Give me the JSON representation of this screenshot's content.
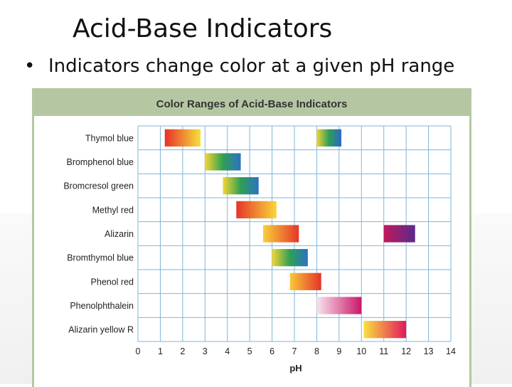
{
  "slide": {
    "title": "Acid-Base Indicators",
    "bullet": "Indicators change color at a given pH range"
  },
  "chart_data": {
    "type": "bar",
    "title": "Color Ranges of Acid-Base Indicators",
    "xlabel": "pH",
    "ylabel": "",
    "xlim": [
      0,
      14
    ],
    "xticks": [
      "0",
      "1",
      "2",
      "3",
      "4",
      "5",
      "6",
      "7",
      "8",
      "9",
      "10",
      "11",
      "12",
      "13",
      "14"
    ],
    "grid": true,
    "categories": [
      "Thymol blue",
      "Bromphenol blue",
      "Bromcresol green",
      "Methyl red",
      "Alizarin",
      "Bromthymol blue",
      "Phenol red",
      "Phenolphthalein",
      "Alizarin yellow R"
    ],
    "ranges": [
      [
        {
          "start": 1.2,
          "end": 2.8,
          "from": "#e8302a",
          "to": "#f6e03a"
        },
        {
          "start": 8.0,
          "end": 9.1,
          "from": "#f3d23a",
          "to": "#2a68c8",
          "mid": "#2e9e55"
        }
      ],
      [
        {
          "start": 3.0,
          "end": 4.6,
          "from": "#f5d535",
          "to": "#2c70c8",
          "mid": "#2ea052"
        }
      ],
      [
        {
          "start": 3.8,
          "end": 5.4,
          "from": "#f5d535",
          "to": "#2a72c4",
          "mid": "#2ea052"
        }
      ],
      [
        {
          "start": 4.4,
          "end": 6.2,
          "from": "#e5342a",
          "to": "#f8d83a"
        }
      ],
      [
        {
          "start": 5.6,
          "end": 7.2,
          "from": "#f8d03a",
          "to": "#e5352a"
        },
        {
          "start": 11.0,
          "end": 12.4,
          "from": "#c2185b",
          "to": "#5a2a8c"
        }
      ],
      [
        {
          "start": 6.0,
          "end": 7.6,
          "from": "#f5d535",
          "to": "#2a72c4",
          "mid": "#2ea052"
        }
      ],
      [
        {
          "start": 6.8,
          "end": 8.2,
          "from": "#f8c83a",
          "to": "#e5342a"
        }
      ],
      [
        {
          "start": 8.0,
          "end": 10.0,
          "from": "#f8e4ec",
          "to": "#c8186b"
        }
      ],
      [
        {
          "start": 10.1,
          "end": 12.0,
          "from": "#f8e040",
          "to": "#e2185a"
        }
      ]
    ]
  }
}
